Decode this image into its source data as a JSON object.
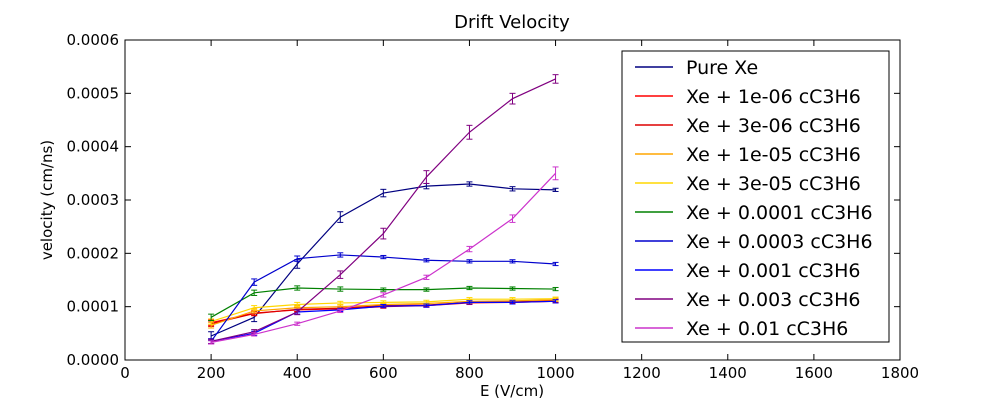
{
  "chart_data": {
    "type": "line",
    "title": "Drift Velocity",
    "xlabel": "E (V/cm)",
    "ylabel": "velocity (cm/ns)",
    "xlim": [
      0,
      1800
    ],
    "ylim": [
      0,
      0.0006
    ],
    "x_ticks": [
      "0",
      "200",
      "400",
      "600",
      "800",
      "1000",
      "1200",
      "1400",
      "1600",
      "1800"
    ],
    "y_ticks": [
      "0.0000",
      "0.0001",
      "0.0002",
      "0.0003",
      "0.0004",
      "0.0005",
      "0.0006"
    ],
    "grid": false,
    "legend_position": "top-right",
    "x": [
      200,
      300,
      400,
      500,
      600,
      700,
      800,
      900,
      1000
    ],
    "series": [
      {
        "name": "Pure Xe",
        "color": "#000080",
        "values": [
          4.5e-05,
          8e-05,
          0.00018,
          0.000268,
          0.000313,
          0.000326,
          0.00033,
          0.000321,
          0.000319
        ],
        "errors": [
          8e-06,
          8e-06,
          8e-06,
          1e-05,
          7e-06,
          5e-06,
          4e-06,
          4e-06,
          3e-06
        ]
      },
      {
        "name": "Xe + 1e-06 cC3H6",
        "color": "#ff0000",
        "values": [
          7e-05,
          8.8e-05,
          9.4e-05,
          9.6e-05,
          0.0001,
          0.000102,
          0.000107,
          0.000108,
          0.00011
        ],
        "errors": [
          5e-06,
          4e-06,
          4e-06,
          3e-06,
          3e-06,
          3e-06,
          3e-06,
          3e-06,
          3e-06
        ]
      },
      {
        "name": "Xe + 3e-06 cC3H6",
        "color": "#dd0000",
        "values": [
          6.8e-05,
          8.7e-05,
          9.5e-05,
          9.7e-05,
          0.000102,
          0.000103,
          0.000108,
          0.000109,
          0.000111
        ],
        "errors": [
          5e-06,
          4e-06,
          4e-06,
          3e-06,
          3e-06,
          3e-06,
          3e-06,
          3e-06,
          3e-06
        ]
      },
      {
        "name": "Xe + 1e-05 cC3H6",
        "color": "#ffa500",
        "values": [
          6.5e-05,
          9.2e-05,
          9.8e-05,
          0.0001,
          0.000104,
          0.000106,
          0.00011,
          0.000111,
          0.000113
        ],
        "errors": [
          5e-06,
          4e-06,
          4e-06,
          3e-06,
          3e-06,
          3e-06,
          3e-06,
          3e-06,
          3e-06
        ]
      },
      {
        "name": "Xe + 3e-05 cC3H6",
        "color": "#ffd700",
        "values": [
          7.2e-05,
          9.8e-05,
          0.000104,
          0.000107,
          0.000108,
          0.000109,
          0.000114,
          0.000114,
          0.000115
        ],
        "errors": [
          5e-06,
          4e-06,
          4e-06,
          3e-06,
          3e-06,
          3e-06,
          3e-06,
          3e-06,
          3e-06
        ]
      },
      {
        "name": "Xe + 0.0001 cC3H6",
        "color": "#008000",
        "values": [
          8e-05,
          0.000126,
          0.000135,
          0.000133,
          0.000132,
          0.000132,
          0.000135,
          0.000134,
          0.000133
        ],
        "errors": [
          6e-06,
          5e-06,
          4e-06,
          4e-06,
          3e-06,
          3e-06,
          3e-06,
          3e-06,
          3e-06
        ]
      },
      {
        "name": "Xe + 0.0003 cC3H6",
        "color": "#0000cd",
        "values": [
          3.5e-05,
          0.000146,
          0.00019,
          0.000197,
          0.000193,
          0.000187,
          0.000185,
          0.000185,
          0.00018
        ],
        "errors": [
          5e-06,
          6e-06,
          5e-06,
          4e-06,
          3e-06,
          3e-06,
          3e-06,
          3e-06,
          3e-06
        ]
      },
      {
        "name": "Xe + 0.001 cC3H6",
        "color": "#0000ff",
        "values": [
          3.5e-05,
          5e-05,
          9e-05,
          9.4e-05,
          0.000101,
          0.000102,
          0.000108,
          0.000108,
          0.00011
        ],
        "errors": [
          4e-06,
          4e-06,
          4e-06,
          3e-06,
          3e-06,
          3e-06,
          3e-06,
          3e-06,
          3e-06
        ]
      },
      {
        "name": "Xe + 0.003 cC3H6",
        "color": "#800080",
        "values": [
          3.5e-05,
          5.3e-05,
          9e-05,
          0.00016,
          0.000237,
          0.000343,
          0.000427,
          0.00049,
          0.000527
        ],
        "errors": [
          4e-06,
          4e-06,
          5e-06,
          7e-06,
          1e-05,
          1.2e-05,
          1.3e-05,
          1e-05,
          8e-06
        ]
      },
      {
        "name": "Xe + 0.01 cC3H6",
        "color": "#cc33cc",
        "values": [
          3.3e-05,
          4.8e-05,
          6.8e-05,
          9.2e-05,
          0.000122,
          0.000155,
          0.000208,
          0.000265,
          0.00035
        ],
        "errors": [
          3e-06,
          3e-06,
          3e-06,
          3e-06,
          4e-06,
          4e-06,
          5e-06,
          7e-06,
          1.2e-05
        ]
      }
    ]
  }
}
